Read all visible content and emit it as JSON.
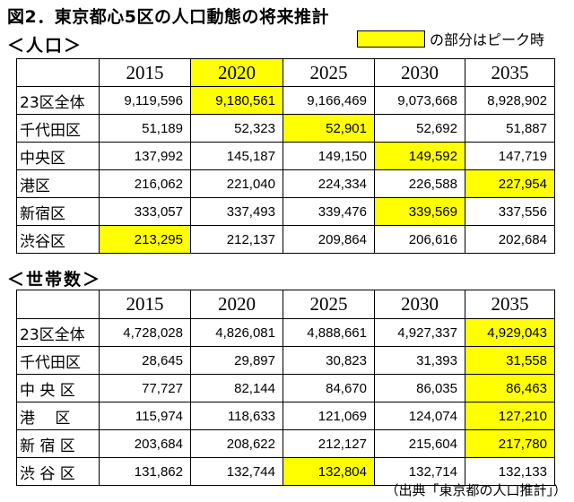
{
  "title": "図2．東京都心5区の人口動態の将来推計",
  "legend": {
    "text": "の部分はピーク時",
    "color": "#ffff00"
  },
  "sections": [
    {
      "title": "＜人口＞",
      "years": [
        "2015",
        "2020",
        "2025",
        "2030",
        "2035"
      ],
      "rows": [
        {
          "label": "23区全体",
          "values": [
            "9,119,596",
            "9,180,561",
            "9,166,469",
            "9,073,668",
            "8,928,902"
          ],
          "peak_index": 1
        },
        {
          "label": "千代田区",
          "values": [
            "51,189",
            "52,323",
            "52,901",
            "52,692",
            "51,887"
          ],
          "peak_index": 2
        },
        {
          "label": "中央区",
          "values": [
            "137,992",
            "145,187",
            "149,150",
            "149,592",
            "147,719"
          ],
          "peak_index": 3
        },
        {
          "label": "港区",
          "values": [
            "216,062",
            "221,040",
            "224,334",
            "226,588",
            "227,954"
          ],
          "peak_index": 4
        },
        {
          "label": "新宿区",
          "values": [
            "333,057",
            "337,493",
            "339,476",
            "339,569",
            "337,556"
          ],
          "peak_index": 3
        },
        {
          "label": "渋谷区",
          "values": [
            "213,295",
            "212,137",
            "209,864",
            "206,616",
            "202,684"
          ],
          "peak_index": 0
        }
      ]
    },
    {
      "title": "＜世帯数＞",
      "years": [
        "2015",
        "2020",
        "2025",
        "2030",
        "2035"
      ],
      "rows": [
        {
          "label": "23区全体",
          "values": [
            "4,728,028",
            "4,826,081",
            "4,888,661",
            "4,927,337",
            "4,929,043"
          ],
          "peak_index": 4
        },
        {
          "label": "千代田区",
          "values": [
            "28,645",
            "29,897",
            "30,823",
            "31,393",
            "31,558"
          ],
          "peak_index": 4
        },
        {
          "label": "中 央 区",
          "values": [
            "77,727",
            "82,144",
            "84,670",
            "86,035",
            "86,463"
          ],
          "peak_index": 4
        },
        {
          "label": "港　 区",
          "values": [
            "115,974",
            "118,633",
            "121,069",
            "124,074",
            "127,210"
          ],
          "peak_index": 4
        },
        {
          "label": "新 宿 区",
          "values": [
            "203,684",
            "208,622",
            "212,127",
            "215,604",
            "217,780"
          ],
          "peak_index": 4
        },
        {
          "label": "渋 谷 区",
          "values": [
            "131,862",
            "132,744",
            "132,804",
            "132,714",
            "132,133"
          ],
          "peak_index": 2
        }
      ]
    }
  ],
  "source": "（出典「東京都の人口推計」）"
}
